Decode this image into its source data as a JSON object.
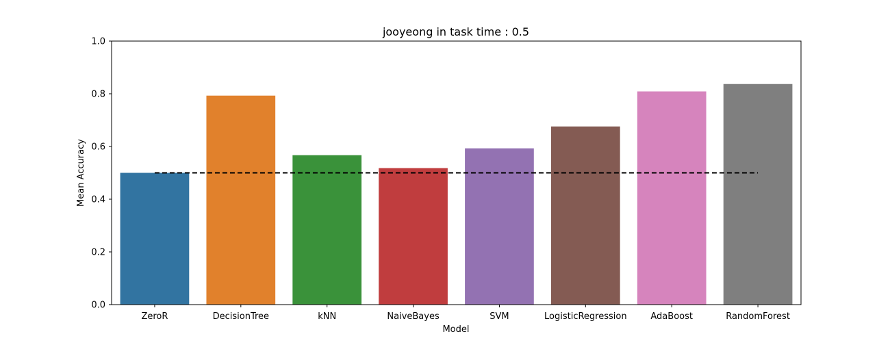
{
  "chart_data": {
    "type": "bar",
    "title": "jooyeong in task time : 0.5",
    "xlabel": "Model",
    "ylabel": "Mean Accuracy",
    "ylim": [
      0,
      1.0
    ],
    "yticks": [
      0.0,
      0.2,
      0.4,
      0.6,
      0.8,
      1.0
    ],
    "ytick_labels": [
      "0.0",
      "0.2",
      "0.4",
      "0.6",
      "0.8",
      "1.0"
    ],
    "categories": [
      "ZeroR",
      "DecisionTree",
      "kNN",
      "NaiveBayes",
      "SVM",
      "LogisticRegression",
      "AdaBoost",
      "RandomForest"
    ],
    "values": [
      0.5,
      0.793,
      0.567,
      0.518,
      0.593,
      0.676,
      0.809,
      0.837
    ],
    "colors": [
      "#3274a1",
      "#e1812c",
      "#3a923a",
      "#c03d3e",
      "#9372b2",
      "#845b53",
      "#d684bd",
      "#7f7f7f"
    ],
    "reference_line": {
      "y": 0.5,
      "style": "dashed",
      "color": "#000000"
    },
    "grid": false,
    "legend": false
  }
}
